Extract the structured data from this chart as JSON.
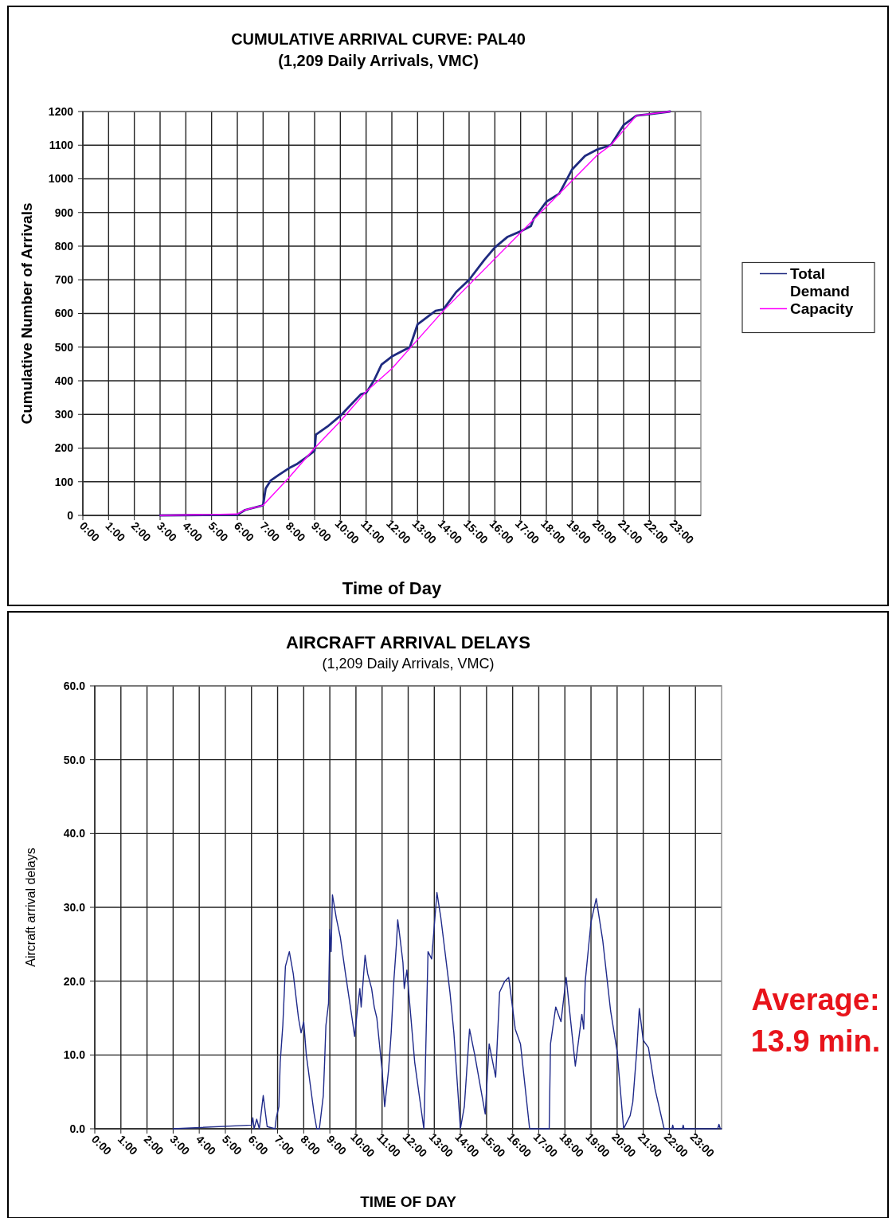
{
  "chart_data": [
    {
      "type": "line",
      "title": "CUMULATIVE ARRIVAL CURVE:  PAL40",
      "subtitle": "(1,209 Daily Arrivals, VMC)",
      "xlabel": "Time of Day",
      "ylabel": "Cumulative Number of Arrivals",
      "xlim": [
        0,
        24
      ],
      "xticks": [
        {
          "value": 0,
          "label": "0:00"
        },
        {
          "value": 1,
          "label": "1:00"
        },
        {
          "value": 2,
          "label": "2:00"
        },
        {
          "value": 3,
          "label": "3:00"
        },
        {
          "value": 4,
          "label": "4:00"
        },
        {
          "value": 5,
          "label": "5:00"
        },
        {
          "value": 6,
          "label": "6:00"
        },
        {
          "value": 7,
          "label": "7:00"
        },
        {
          "value": 8,
          "label": "8:00"
        },
        {
          "value": 9,
          "label": "9:00"
        },
        {
          "value": 10,
          "label": "10:00"
        },
        {
          "value": 11,
          "label": "11:00"
        },
        {
          "value": 12,
          "label": "12:00"
        },
        {
          "value": 13,
          "label": "13:00"
        },
        {
          "value": 14,
          "label": "14:00"
        },
        {
          "value": 15,
          "label": "15:00"
        },
        {
          "value": 16,
          "label": "16:00"
        },
        {
          "value": 17,
          "label": "17:00"
        },
        {
          "value": 18,
          "label": "18:00"
        },
        {
          "value": 19,
          "label": "19:00"
        },
        {
          "value": 20,
          "label": "20:00"
        },
        {
          "value": 21,
          "label": "21:00"
        },
        {
          "value": 22,
          "label": "22:00"
        },
        {
          "value": 23,
          "label": "23:00"
        }
      ],
      "ylim": [
        0,
        1200
      ],
      "yticks": [
        0,
        100,
        200,
        300,
        400,
        500,
        600,
        700,
        800,
        900,
        1000,
        1100,
        1200
      ],
      "grid": true,
      "legend": "right",
      "series": [
        {
          "name": "Total Demand",
          "color": "#1f2a80",
          "x": [
            3,
            6,
            6.3,
            7,
            7.1,
            7.3,
            7.6,
            8,
            8.3,
            8.6,
            9,
            9.05,
            9.5,
            10,
            10.5,
            10.8,
            11,
            11.3,
            11.6,
            12,
            12.7,
            13,
            13.7,
            14,
            14.5,
            15,
            15.6,
            16,
            16.5,
            17,
            17.4,
            17.5,
            18,
            18.5,
            19,
            19.5,
            20,
            20.5,
            21,
            21.5,
            22,
            22.8
          ],
          "values": [
            0,
            2,
            16,
            30,
            80,
            104,
            120,
            140,
            152,
            168,
            192,
            240,
            264,
            296,
            336,
            360,
            364,
            400,
            448,
            472,
            500,
            568,
            608,
            612,
            664,
            700,
            760,
            796,
            828,
            844,
            860,
            880,
            932,
            956,
            1028,
            1068,
            1088,
            1100,
            1160,
            1188,
            1192,
            1200
          ]
        },
        {
          "name": "Capacity",
          "color": "#ff00ff",
          "x": [
            3,
            6,
            6.3,
            7,
            8,
            9,
            10,
            11,
            12,
            14,
            20,
            20.5,
            21,
            21.5,
            22.8
          ],
          "values": [
            0,
            4,
            16,
            30,
            112,
            200,
            280,
            368,
            436,
            608,
            1072,
            1100,
            1144,
            1188,
            1200
          ]
        }
      ]
    },
    {
      "type": "line",
      "title": "AIRCRAFT ARRIVAL  DELAYS",
      "subtitle": "(1,209 Daily Arrivals, VMC)",
      "xlabel": "TIME OF DAY",
      "ylabel": "Aircraft arrival delays",
      "annotations": [
        "Average: 13.9 min."
      ],
      "xlim": [
        0,
        24
      ],
      "xticks": [
        {
          "value": 0,
          "label": "0:00"
        },
        {
          "value": 1,
          "label": "1:00"
        },
        {
          "value": 2,
          "label": "2:00"
        },
        {
          "value": 3,
          "label": "3:00"
        },
        {
          "value": 4,
          "label": "4:00"
        },
        {
          "value": 5,
          "label": "5:00"
        },
        {
          "value": 6,
          "label": "6:00"
        },
        {
          "value": 7,
          "label": "7:00"
        },
        {
          "value": 8,
          "label": "8:00"
        },
        {
          "value": 9,
          "label": "9:00"
        },
        {
          "value": 10,
          "label": "10:00"
        },
        {
          "value": 11,
          "label": "11:00"
        },
        {
          "value": 12,
          "label": "12:00"
        },
        {
          "value": 13,
          "label": "13:00"
        },
        {
          "value": 14,
          "label": "14:00"
        },
        {
          "value": 15,
          "label": "15:00"
        },
        {
          "value": 16,
          "label": "16:00"
        },
        {
          "value": 17,
          "label": "17:00"
        },
        {
          "value": 18,
          "label": "18:00"
        },
        {
          "value": 19,
          "label": "19:00"
        },
        {
          "value": 20,
          "label": "20:00"
        },
        {
          "value": 21,
          "label": "21:00"
        },
        {
          "value": 22,
          "label": "22:00"
        },
        {
          "value": 23,
          "label": "23:00"
        }
      ],
      "ylim": [
        0,
        60
      ],
      "yticks": [
        {
          "value": 0,
          "label": "0.0"
        },
        {
          "value": 10,
          "label": "10.0"
        },
        {
          "value": 20,
          "label": "20.0"
        },
        {
          "value": 30,
          "label": "30.0"
        },
        {
          "value": 40,
          "label": "40.0"
        },
        {
          "value": 50,
          "label": "50.0"
        },
        {
          "value": 60,
          "label": "60.0"
        }
      ],
      "grid": true,
      "series": [
        {
          "color": "#1f2a8a",
          "x": [
            3,
            6,
            6.05,
            6.1,
            6.2,
            6.3,
            6.45,
            6.6,
            6.9,
            6.95,
            7.05,
            7.1,
            7.2,
            7.3,
            7.45,
            7.6,
            7.8,
            7.9,
            8,
            8.1,
            8.4,
            8.5,
            8.6,
            8.75,
            8.8,
            8.85,
            8.95,
            9,
            9.05,
            9.1,
            9.25,
            9.4,
            9.6,
            9.85,
            9.95,
            10.05,
            10.15,
            10.2,
            10.35,
            10.45,
            10.6,
            10.7,
            10.8,
            11,
            11.1,
            11.25,
            11.35,
            11.45,
            11.55,
            11.6,
            11.7,
            11.8,
            11.85,
            11.95,
            12.25,
            12.6,
            12.65,
            12.76,
            12.9,
            13.1,
            13.25,
            13.6,
            13.75,
            14,
            14.15,
            14.35,
            14.55,
            14.95,
            15.1,
            15.35,
            15.5,
            15.7,
            15.85,
            16.1,
            16.3,
            16.65,
            17.4,
            17.45,
            17.65,
            17.85,
            18.05,
            18.4,
            18.65,
            18.72,
            18.78,
            19,
            19.2,
            19.45,
            19.75,
            20,
            20.25,
            20.5,
            20.6,
            20.75,
            20.85,
            21,
            21.2,
            21.45,
            21.8,
            22.1,
            22.13,
            22.16,
            22.5,
            22.53,
            22.56,
            23.85,
            23.9,
            23.95,
            24
          ],
          "values": [
            0,
            0.5,
            1.5,
            0,
            1.3,
            0,
            4.5,
            0.3,
            0,
            1.5,
            3,
            9,
            14,
            22,
            24,
            21,
            15,
            13,
            14.5,
            10,
            2,
            0,
            0,
            4.5,
            9,
            14,
            17,
            27,
            24,
            31.7,
            28.5,
            26,
            21,
            15,
            12.5,
            16,
            19,
            16.5,
            23.5,
            21,
            19,
            16.5,
            15,
            8,
            3,
            8,
            13,
            20,
            25,
            28.3,
            25.5,
            22.5,
            19,
            21.5,
            9,
            0,
            7,
            24,
            23,
            32,
            28.6,
            18.5,
            13,
            0,
            3,
            13.5,
            10,
            2,
            11.5,
            7,
            18.5,
            20,
            20.5,
            13.5,
            11.5,
            0,
            0,
            11.5,
            16.5,
            14.5,
            20.5,
            8.5,
            15.5,
            13.5,
            20,
            28,
            31.2,
            25.5,
            16,
            10.5,
            0,
            1.8,
            3.6,
            10.5,
            16.3,
            12,
            11,
            5.4,
            0,
            0,
            0.5,
            0,
            0,
            0.5,
            0,
            0,
            0.6,
            0,
            0
          ]
        }
      ]
    }
  ]
}
